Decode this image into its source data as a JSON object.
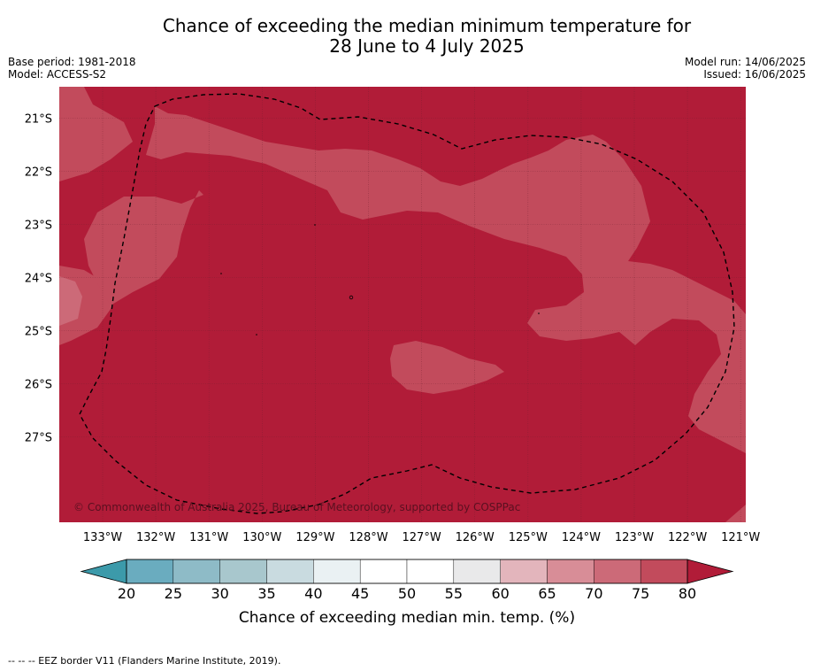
{
  "title_line1": "Chance of exceeding the median minimum temperature for",
  "title_line2": "28 June to 4 July 2025",
  "base_period": "Base period: 1981-2018",
  "model": "Model: ACCESS-S2",
  "model_run": "Model run: 14/06/2025",
  "issued": "Issued: 16/06/2025",
  "copyright": "© Commonwealth of Australia 2025, Bureau of Meteorology, supported by COSPPac",
  "footer_note": "-- -- -- EEZ border V11 (Flanders Marine Institute, 2019).",
  "colors": {
    "dark_red": "#b11c38",
    "mid_red": "#c24b5c",
    "light_red": "#cc6a78",
    "grid": "#6b2030",
    "background": "#ffffff"
  },
  "map": {
    "lon_labels": [
      "133°W",
      "132°W",
      "131°W",
      "130°W",
      "129°W",
      "128°W",
      "127°W",
      "126°W",
      "125°W",
      "124°W",
      "123°W",
      "122°W",
      "121°W"
    ],
    "lat_labels": [
      "21°S",
      "22°S",
      "23°S",
      "24°S",
      "25°S",
      "26°S",
      "27°S"
    ],
    "lon_range": [
      -133.8,
      -121.1
    ],
    "lat_range": [
      -28.6,
      -20.4
    ]
  },
  "colorbar": {
    "ticks": [
      "20",
      "25",
      "30",
      "35",
      "40",
      "45",
      "50",
      "55",
      "60",
      "65",
      "70",
      "75",
      "80"
    ],
    "colors": [
      "#6aacbf",
      "#8ebbc7",
      "#a8c7cd",
      "#c9dbe0",
      "#eaf1f3",
      "#ffffff",
      "#ffffff",
      "#e9e9ea",
      "#e3b5bc",
      "#d88d97",
      "#cc6a78",
      "#c24b5c"
    ],
    "low_extend_color": "#3c9aaa",
    "high_extend_color": "#b11c38",
    "label": "Chance of exceeding median min. temp. (%)"
  }
}
